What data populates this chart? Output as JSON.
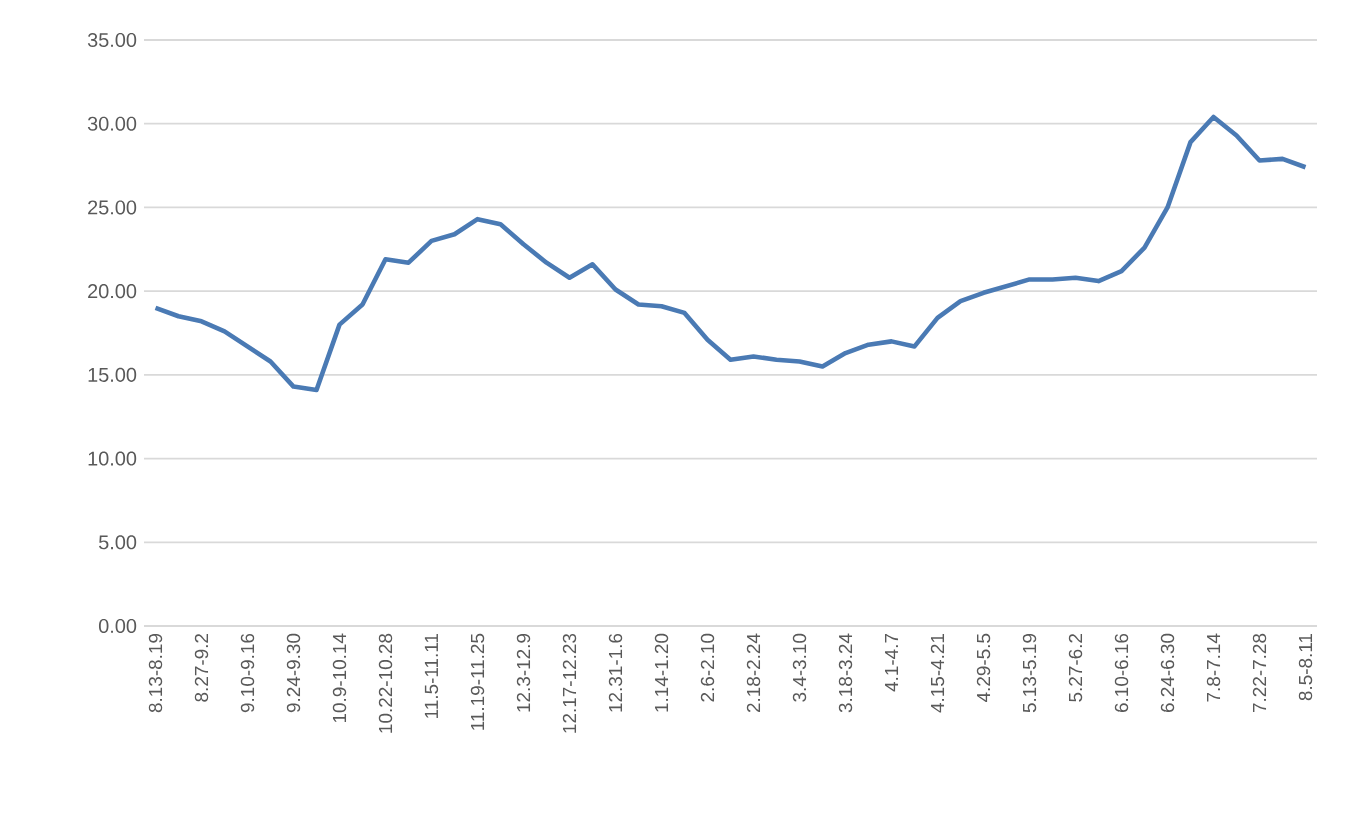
{
  "chart_data": {
    "type": "line",
    "categories": [
      "8.13-8.19",
      null,
      "8.27-9.2",
      null,
      "9.10-9.16",
      null,
      "9.24-9.30",
      null,
      "10.9-10.14",
      null,
      "10.22-10.28",
      null,
      "11.5-11.11",
      null,
      "11.19-11.25",
      null,
      "12.3-12.9",
      null,
      "12.17-12.23",
      null,
      "12.31-1.6",
      null,
      "1.14-1.20",
      null,
      "2.6-2.10",
      null,
      "2.18-2.24",
      null,
      "3.4-3.10",
      null,
      "3.18-3.24",
      null,
      "4.1-4.7",
      null,
      "4.15-4.21",
      null,
      "4.29-5.5",
      null,
      "5.13-5.19",
      null,
      "5.27-6.2",
      null,
      "6.10-6.16",
      null,
      "6.24-6.30",
      null,
      "7.8-7.14",
      null,
      "7.22-7.28",
      null,
      "8.5-8.11"
    ],
    "series": [
      {
        "color": "#4a7ab4",
        "values": [
          19.0,
          18.5,
          18.2,
          17.6,
          16.7,
          15.8,
          14.3,
          14.1,
          18.0,
          19.2,
          21.9,
          21.7,
          23.0,
          23.4,
          24.3,
          24.0,
          22.8,
          21.7,
          20.8,
          21.6,
          20.1,
          19.2,
          19.1,
          18.7,
          17.1,
          15.9,
          16.1,
          15.9,
          15.8,
          15.5,
          16.3,
          16.8,
          17.0,
          16.7,
          18.4,
          19.4,
          19.9,
          20.3,
          20.7,
          20.7,
          20.8,
          20.6,
          21.2,
          22.6,
          25.0,
          28.9,
          30.4,
          29.3,
          27.8,
          27.9,
          27.4
        ]
      }
    ],
    "ylim": [
      0,
      35
    ],
    "yticks": [
      {
        "value": 0,
        "label": "0.00"
      },
      {
        "value": 5,
        "label": "5.00"
      },
      {
        "value": 10,
        "label": "10.00"
      },
      {
        "value": 15,
        "label": "15.00"
      },
      {
        "value": 20,
        "label": "20.00"
      },
      {
        "value": 25,
        "label": "25.00"
      },
      {
        "value": 30,
        "label": "30.00"
      },
      {
        "value": 35,
        "label": "35.00"
      }
    ],
    "grid": "y"
  }
}
